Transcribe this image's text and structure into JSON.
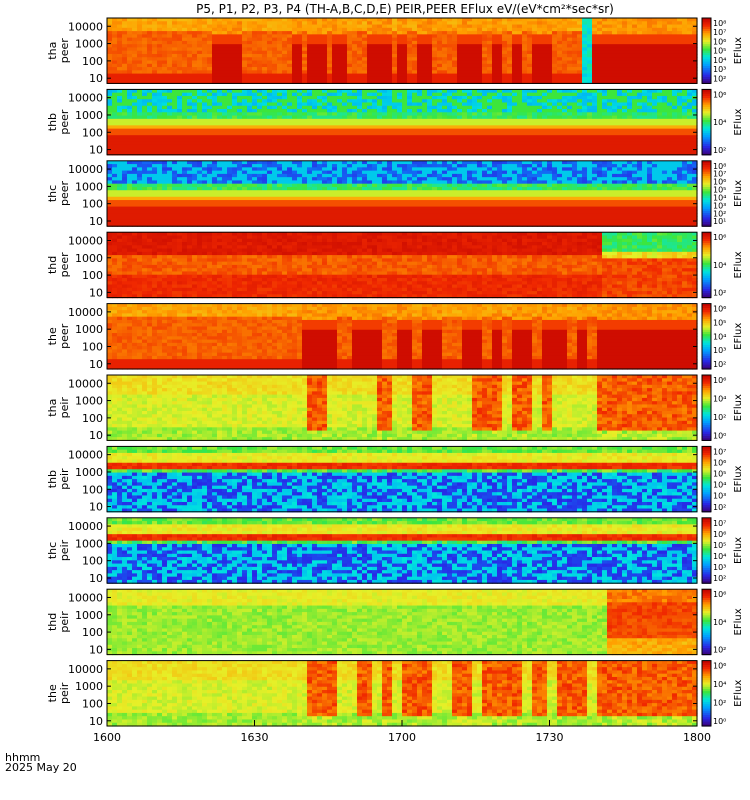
{
  "chart_data": {
    "type": "heatmap",
    "title": "P5, P1, P2, P3, P4 (TH-A,B,C,D,E) PEIR,PEER EFlux eV/(eV*cm²*sec*sr)",
    "x_ticks": [
      "1600",
      "1630",
      "1700",
      "1730",
      "1800"
    ],
    "x_range": [
      0,
      120
    ],
    "x_label_line1": "hhmm",
    "x_label_line2": "2025 May 20",
    "y_ticks": [
      "10000",
      "1000",
      "100",
      "10"
    ],
    "y_range": [
      5,
      30000
    ],
    "y_scale": "log",
    "colorbar_label": "EFlux",
    "panels": [
      {
        "id": "tha-peer",
        "probe": "tha",
        "species": "peer",
        "cb_ticks": [
          "10⁸",
          "10⁷",
          "10⁶",
          "10⁵",
          "10⁴",
          "10³",
          "10²"
        ],
        "pattern": "peer_active",
        "dark_intervals": [
          [
            21,
            27
          ],
          [
            38,
            40
          ],
          [
            41,
            45
          ],
          [
            46,
            49
          ],
          [
            53,
            58
          ],
          [
            59,
            61
          ],
          [
            63,
            66
          ],
          [
            71,
            76
          ],
          [
            78,
            80
          ],
          [
            82,
            84
          ],
          [
            86,
            91
          ],
          [
            99,
            120
          ]
        ],
        "lost_intervals": [
          [
            97,
            99
          ]
        ]
      },
      {
        "id": "thb-peer",
        "probe": "thb",
        "species": "peer",
        "cb_ticks": [
          "10⁶",
          "10⁴",
          "10²"
        ],
        "pattern": "peer_quiet"
      },
      {
        "id": "thc-peer",
        "probe": "thc",
        "species": "peer",
        "cb_ticks": [
          "10⁸",
          "10⁷",
          "10⁶",
          "10⁵",
          "10⁴",
          "10³",
          "10²",
          "10¹"
        ],
        "pattern": "peer_quiet_dark"
      },
      {
        "id": "thd-peer",
        "probe": "thd",
        "species": "peer",
        "cb_ticks": [
          "10⁶",
          "10⁴",
          "10²"
        ],
        "pattern": "peer_d",
        "change_at": 101
      },
      {
        "id": "the-peer",
        "probe": "the",
        "species": "peer",
        "cb_ticks": [
          "10⁶",
          "10⁵",
          "10⁴",
          "10³",
          "10²"
        ],
        "pattern": "peer_active",
        "dark_intervals": [
          [
            40,
            47
          ],
          [
            50,
            56
          ],
          [
            59,
            62
          ],
          [
            64,
            68
          ],
          [
            72,
            76
          ],
          [
            78,
            80
          ],
          [
            82,
            86
          ],
          [
            88,
            94
          ],
          [
            96,
            98
          ],
          [
            100,
            120
          ]
        ],
        "lost_intervals": []
      },
      {
        "id": "tha-peir",
        "probe": "tha",
        "species": "peir",
        "cb_ticks": [
          "10⁶",
          "10⁴",
          "10²",
          "10⁰"
        ],
        "pattern": "peir_active",
        "hot_intervals": [
          [
            41,
            45
          ],
          [
            55,
            58
          ],
          [
            62,
            66
          ],
          [
            74,
            80
          ],
          [
            82,
            86
          ],
          [
            88,
            91
          ],
          [
            100,
            120
          ]
        ]
      },
      {
        "id": "thb-peir",
        "probe": "thb",
        "species": "peir",
        "cb_ticks": [
          "10⁷",
          "10⁶",
          "10⁵",
          "10⁴",
          "10³",
          "10²"
        ],
        "pattern": "peir_band"
      },
      {
        "id": "thc-peir",
        "probe": "thc",
        "species": "peir",
        "cb_ticks": [
          "10⁷",
          "10⁶",
          "10⁵",
          "10⁴",
          "10³",
          "10²"
        ],
        "pattern": "peir_band"
      },
      {
        "id": "thd-peir",
        "probe": "thd",
        "species": "peir",
        "cb_ticks": [
          "10⁶",
          "10⁴",
          "10²"
        ],
        "pattern": "peir_d",
        "change_at": 102
      },
      {
        "id": "the-peir",
        "probe": "the",
        "species": "peir",
        "cb_ticks": [
          "10⁶",
          "10⁴",
          "10²",
          "10⁰"
        ],
        "pattern": "peir_active",
        "hot_intervals": [
          [
            41,
            47
          ],
          [
            51,
            54
          ],
          [
            56,
            58
          ],
          [
            60,
            66
          ],
          [
            70,
            74
          ],
          [
            76,
            84
          ],
          [
            86,
            90
          ],
          [
            92,
            98
          ],
          [
            100,
            120
          ]
        ]
      }
    ]
  }
}
